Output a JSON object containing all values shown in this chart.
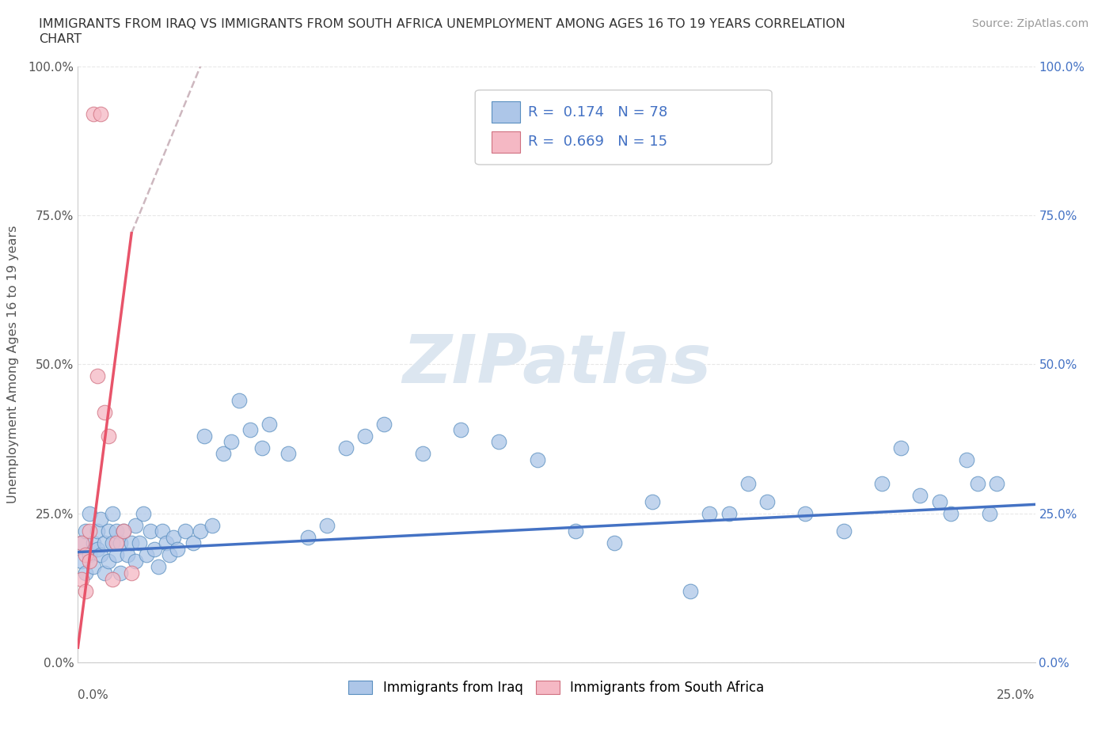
{
  "title_line1": "IMMIGRANTS FROM IRAQ VS IMMIGRANTS FROM SOUTH AFRICA UNEMPLOYMENT AMONG AGES 16 TO 19 YEARS CORRELATION",
  "title_line2": "CHART",
  "source_text": "Source: ZipAtlas.com",
  "xlabel_bottom_left": "0.0%",
  "xlabel_bottom_right": "25.0%",
  "ylabel": "Unemployment Among Ages 16 to 19 years",
  "xlim": [
    0.0,
    0.25
  ],
  "ylim": [
    0.0,
    1.0
  ],
  "yticks": [
    0.0,
    0.25,
    0.5,
    0.75,
    1.0
  ],
  "r_iraq": 0.174,
  "n_iraq": 78,
  "r_sa": 0.669,
  "n_sa": 15,
  "iraq_color": "#adc6e8",
  "iraq_edge_color": "#5a8fc0",
  "sa_color": "#f5b8c4",
  "sa_edge_color": "#d07080",
  "iraq_line_color": "#4472c4",
  "sa_line_color": "#e8546a",
  "sa_dash_color": "#c8b0b8",
  "watermark_color": "#dce6f0",
  "background_color": "#ffffff",
  "grid_color": "#e8e8e8",
  "right_tick_color": "#4472c4",
  "legend_box_color": "#e8e8e8",
  "iraq_scatter_x": [
    0.001,
    0.001,
    0.002,
    0.002,
    0.003,
    0.003,
    0.004,
    0.004,
    0.005,
    0.005,
    0.006,
    0.006,
    0.007,
    0.007,
    0.008,
    0.008,
    0.009,
    0.009,
    0.01,
    0.01,
    0.011,
    0.011,
    0.012,
    0.013,
    0.014,
    0.015,
    0.015,
    0.016,
    0.017,
    0.018,
    0.019,
    0.02,
    0.021,
    0.022,
    0.023,
    0.024,
    0.025,
    0.026,
    0.028,
    0.03,
    0.032,
    0.033,
    0.035,
    0.038,
    0.04,
    0.042,
    0.045,
    0.048,
    0.05,
    0.055,
    0.06,
    0.065,
    0.07,
    0.075,
    0.08,
    0.09,
    0.1,
    0.11,
    0.12,
    0.13,
    0.14,
    0.15,
    0.16,
    0.165,
    0.17,
    0.175,
    0.18,
    0.19,
    0.2,
    0.21,
    0.215,
    0.22,
    0.225,
    0.228,
    0.232,
    0.235,
    0.238,
    0.24
  ],
  "iraq_scatter_y": [
    0.2,
    0.17,
    0.22,
    0.15,
    0.25,
    0.18,
    0.2,
    0.16,
    0.22,
    0.19,
    0.18,
    0.24,
    0.2,
    0.15,
    0.22,
    0.17,
    0.2,
    0.25,
    0.18,
    0.22,
    0.2,
    0.15,
    0.22,
    0.18,
    0.2,
    0.23,
    0.17,
    0.2,
    0.25,
    0.18,
    0.22,
    0.19,
    0.16,
    0.22,
    0.2,
    0.18,
    0.21,
    0.19,
    0.22,
    0.2,
    0.22,
    0.38,
    0.23,
    0.35,
    0.37,
    0.44,
    0.39,
    0.36,
    0.4,
    0.35,
    0.21,
    0.23,
    0.36,
    0.38,
    0.4,
    0.35,
    0.39,
    0.37,
    0.34,
    0.22,
    0.2,
    0.27,
    0.12,
    0.25,
    0.25,
    0.3,
    0.27,
    0.25,
    0.22,
    0.3,
    0.36,
    0.28,
    0.27,
    0.25,
    0.34,
    0.3,
    0.25,
    0.3
  ],
  "sa_scatter_x": [
    0.001,
    0.001,
    0.002,
    0.002,
    0.003,
    0.003,
    0.004,
    0.005,
    0.006,
    0.007,
    0.008,
    0.009,
    0.01,
    0.012,
    0.014
  ],
  "sa_scatter_y": [
    0.2,
    0.14,
    0.18,
    0.12,
    0.22,
    0.17,
    0.92,
    0.48,
    0.92,
    0.42,
    0.38,
    0.14,
    0.2,
    0.22,
    0.15
  ],
  "iraq_trend_x0": 0.0,
  "iraq_trend_x1": 0.25,
  "iraq_trend_y0": 0.185,
  "iraq_trend_y1": 0.265,
  "sa_trend_solid_x0": 0.0,
  "sa_trend_solid_x1": 0.014,
  "sa_trend_solid_y0": 0.025,
  "sa_trend_solid_y1": 0.72,
  "sa_trend_dash_x0": 0.014,
  "sa_trend_dash_x1": 0.032,
  "sa_trend_dash_y0": 0.72,
  "sa_trend_dash_y1": 1.0,
  "legend_iraq_label": "Immigrants from Iraq",
  "legend_sa_label": "Immigrants from South Africa"
}
